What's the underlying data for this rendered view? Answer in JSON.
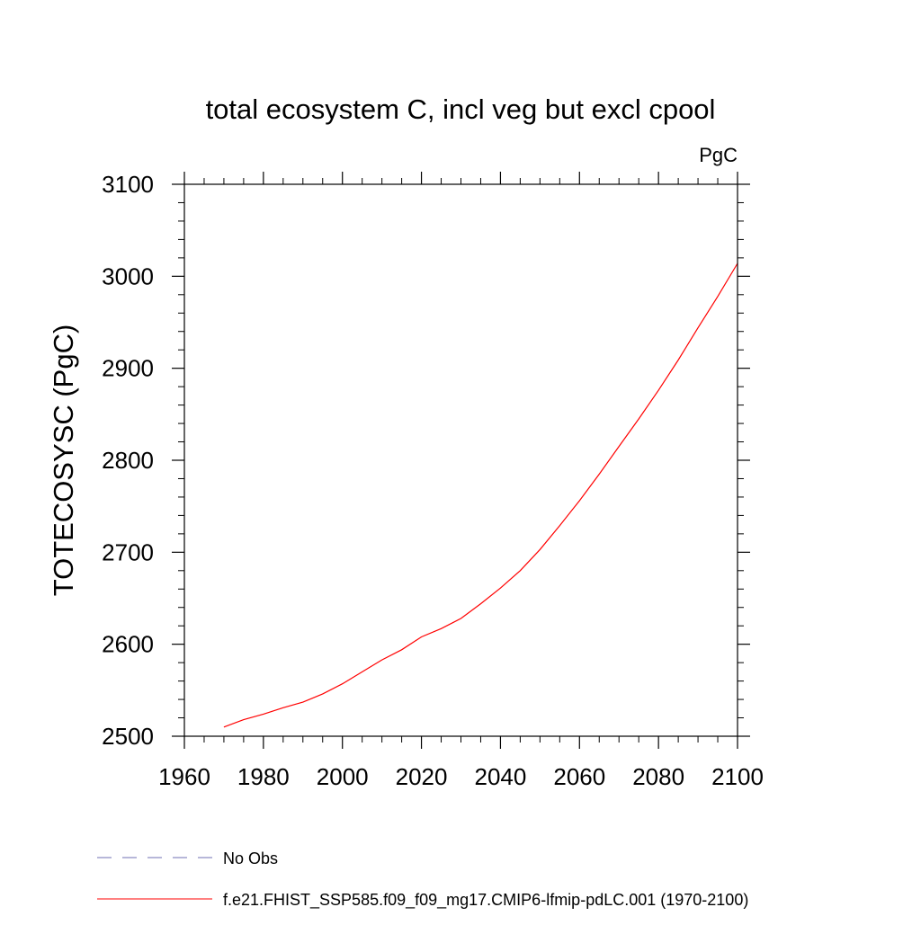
{
  "chart_data": {
    "type": "line",
    "title": "total ecosystem C, incl veg but excl cpool",
    "units": "PgC",
    "xlabel": "",
    "ylabel": "TOTECOSYSC  (PgC)",
    "xlim": [
      1960,
      2100
    ],
    "ylim": [
      2500,
      3100
    ],
    "x_ticks": [
      1960,
      1980,
      2000,
      2020,
      2040,
      2060,
      2080,
      2100
    ],
    "x_tick_labels": [
      "1960",
      "1980",
      "2000",
      "2020",
      "2040",
      "2060",
      "2080",
      "2100"
    ],
    "x_minor_step": 5,
    "y_ticks": [
      2500,
      2600,
      2700,
      2800,
      2900,
      3000,
      3100
    ],
    "y_tick_labels": [
      "2500",
      "2600",
      "2700",
      "2800",
      "2900",
      "3000",
      "3100"
    ],
    "y_minor_step": 20,
    "grid": false,
    "legend_position": "bottom",
    "legend": [
      {
        "label": "No Obs",
        "color": "#6f6fb3",
        "style": "dashed"
      },
      {
        "label": "f.e21.FHIST_SSP585.f09_f09_mg17.CMIP6-lfmip-pdLC.001 (1970-2100)",
        "color": "#ff0000",
        "style": "solid"
      }
    ],
    "series": [
      {
        "name": "f.e21.FHIST_SSP585.f09_f09_mg17.CMIP6-lfmip-pdLC.001 (1970-2100)",
        "color": "#ff0000",
        "x": [
          1970,
          1975,
          1980,
          1985,
          1990,
          1995,
          2000,
          2005,
          2010,
          2015,
          2020,
          2025,
          2030,
          2035,
          2040,
          2045,
          2050,
          2055,
          2060,
          2065,
          2070,
          2075,
          2080,
          2085,
          2090,
          2095,
          2100
        ],
        "values": [
          2510,
          2518,
          2524,
          2531,
          2537,
          2546,
          2557,
          2570,
          2583,
          2594,
          2608,
          2617,
          2628,
          2644,
          2661,
          2680,
          2703,
          2729,
          2756,
          2785,
          2815,
          2845,
          2876,
          2909,
          2944,
          2978,
          3014
        ]
      }
    ]
  }
}
